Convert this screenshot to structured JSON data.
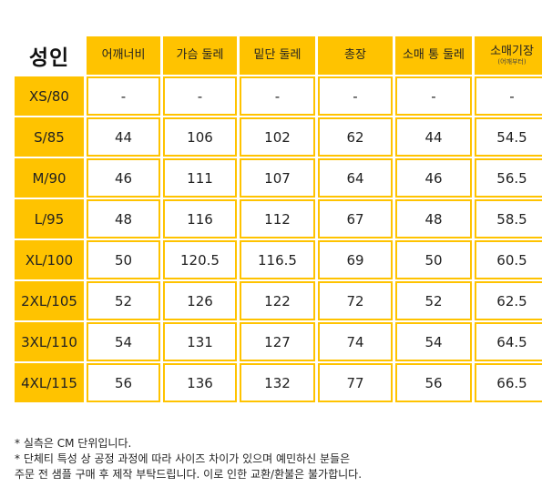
{
  "title": "성인",
  "headers": [
    {
      "label": "어깨너비"
    },
    {
      "label": "가슴 둘레"
    },
    {
      "label": "밑단 둘레"
    },
    {
      "label": "총장"
    },
    {
      "label": "소매 통 둘레"
    },
    {
      "label": "소매기장",
      "sub": "(어깨부터)"
    }
  ],
  "rows": [
    {
      "size": "XS/80",
      "values": [
        "-",
        "-",
        "-",
        "-",
        "-",
        "-"
      ]
    },
    {
      "size": "S/85",
      "values": [
        "44",
        "106",
        "102",
        "62",
        "44",
        "54.5"
      ]
    },
    {
      "size": "M/90",
      "values": [
        "46",
        "111",
        "107",
        "64",
        "46",
        "56.5"
      ]
    },
    {
      "size": "L/95",
      "values": [
        "48",
        "116",
        "112",
        "67",
        "48",
        "58.5"
      ]
    },
    {
      "size": "XL/100",
      "values": [
        "50",
        "120.5",
        "116.5",
        "69",
        "50",
        "60.5"
      ]
    },
    {
      "size": "2XL/105",
      "values": [
        "52",
        "126",
        "122",
        "72",
        "52",
        "62.5"
      ]
    },
    {
      "size": "3XL/110",
      "values": [
        "54",
        "131",
        "127",
        "74",
        "54",
        "64.5"
      ]
    },
    {
      "size": "4XL/115",
      "values": [
        "56",
        "136",
        "132",
        "77",
        "56",
        "66.5"
      ]
    }
  ],
  "notes": [
    "* 실측은 CM 단위입니다.",
    "* 단체티 특성 상 공정 과정에 따라 사이즈 차이가 있으며 예민하신 분들은",
    "주문 전 샘플 구매 후 제작 부탁드립니다. 이로 인한 교환/환불은 불가합니다."
  ],
  "colors": {
    "accent": "#ffc300"
  }
}
